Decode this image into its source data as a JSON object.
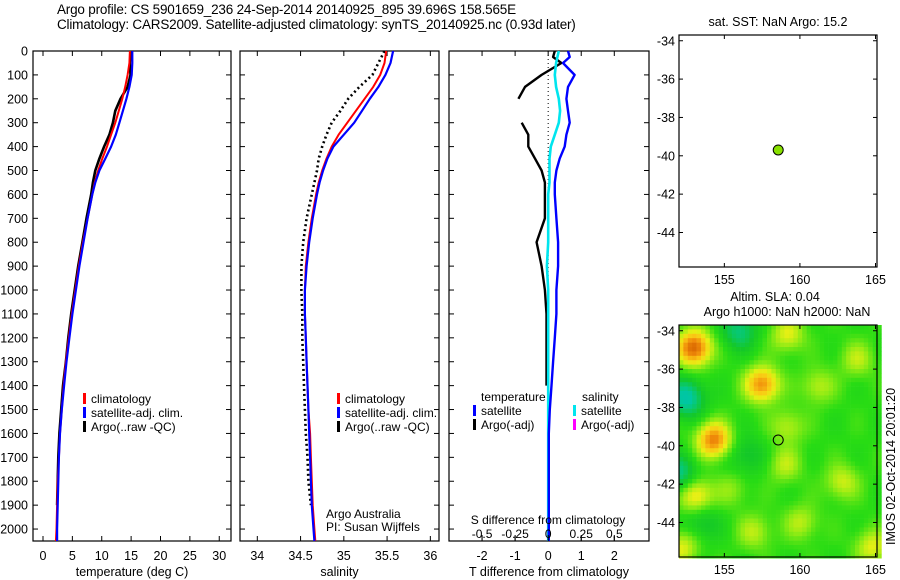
{
  "header": {
    "line1": "Argo profile: CS 5901659_236 24-Sep-2014 20140925_895 39.696S 158.565E",
    "line2": "Climatology: CARS2009. Satellite-adjusted climatology: synTS_20140925.nc (0.93d later)"
  },
  "colors": {
    "climatology": "#ff0000",
    "satellite": "#0000ff",
    "argo": "#000000",
    "salinity_satellite": "#00e5ee",
    "salinity_argo": "#ff00ff",
    "marker": "#88e000"
  },
  "chart_data": [
    {
      "id": "temperature",
      "type": "line",
      "xlabel": "temperature (deg C)",
      "ylabel": "",
      "xlim": [
        -1.7,
        32
      ],
      "ylim": [
        2050,
        0
      ],
      "xticks": [
        0,
        5,
        10,
        15,
        20,
        25,
        30
      ],
      "yticks": [
        0,
        100,
        200,
        300,
        400,
        500,
        600,
        700,
        800,
        900,
        1000,
        1100,
        1200,
        1300,
        1400,
        1500,
        1600,
        1700,
        1800,
        1900,
        2000
      ],
      "legend": [
        "climatology",
        "satellite-adj. clim.",
        "Argo(..raw -QC)"
      ],
      "legend_position": "lower-center",
      "depth": [
        0,
        50,
        100,
        150,
        200,
        250,
        300,
        350,
        400,
        450,
        500,
        550,
        600,
        700,
        800,
        900,
        1000,
        1100,
        1200,
        1300,
        1400,
        1500,
        1600,
        1700,
        1800,
        1900,
        2000,
        2050
      ],
      "series": [
        {
          "name": "climatology",
          "values": [
            14.8,
            14.7,
            14.4,
            14.0,
            13.5,
            12.9,
            12.3,
            11.6,
            10.9,
            10.1,
            9.4,
            8.8,
            8.4,
            7.6,
            6.8,
            6.1,
            5.5,
            4.9,
            4.4,
            3.9,
            3.5,
            3.2,
            2.9,
            2.7,
            2.5,
            2.4,
            2.3,
            2.2
          ]
        },
        {
          "name": "satellite-adj. clim.",
          "values": [
            15.2,
            15.2,
            15.1,
            14.7,
            14.2,
            13.6,
            13.0,
            12.4,
            11.6,
            10.6,
            9.6,
            8.9,
            8.4,
            7.6,
            6.9,
            6.2,
            5.6,
            5.0,
            4.5,
            4.0,
            3.6,
            3.2,
            2.9,
            2.7,
            2.6,
            2.5,
            2.4,
            2.4
          ]
        },
        {
          "name": "Argo(..raw -QC)",
          "values": [
            15.0,
            14.8,
            14.9,
            14.4,
            13.2,
            12.3,
            11.9,
            11.3,
            10.4,
            9.6,
            8.9,
            8.5,
            8.2,
            7.4,
            6.7,
            6.0,
            5.4,
            4.8,
            4.3,
            3.9,
            3.4,
            3.1,
            2.8,
            2.6,
            2.5,
            2.4,
            null,
            null
          ]
        }
      ]
    },
    {
      "id": "salinity",
      "type": "line",
      "xlabel": "salinity",
      "xlim": [
        33.8,
        36.1
      ],
      "ylim": [
        2050,
        0
      ],
      "xticks": [
        34,
        34.5,
        35,
        35.5,
        36
      ],
      "legend": [
        "climatology",
        "satellite-adj. clim.",
        "Argo(..raw -QC)"
      ],
      "legend_position": "lower-right",
      "annotation": [
        "Argo Australia",
        "PI: Susan Wijffels"
      ],
      "depth": [
        0,
        50,
        100,
        150,
        200,
        250,
        300,
        350,
        400,
        450,
        500,
        550,
        600,
        700,
        800,
        900,
        1000,
        1100,
        1200,
        1300,
        1400,
        1500,
        1600,
        1700,
        1800,
        1900,
        2000,
        2050
      ],
      "series": [
        {
          "name": "climatology",
          "values": [
            35.49,
            35.47,
            35.42,
            35.34,
            35.24,
            35.14,
            35.04,
            34.94,
            34.86,
            34.8,
            34.75,
            34.71,
            34.68,
            34.63,
            34.59,
            34.56,
            34.55,
            34.55,
            34.56,
            34.57,
            34.58,
            34.59,
            34.61,
            34.62,
            34.63,
            34.64,
            34.66,
            34.67
          ]
        },
        {
          "name": "satellite-adj. clim.",
          "values": [
            35.57,
            35.54,
            35.48,
            35.4,
            35.3,
            35.21,
            35.12,
            35.0,
            34.88,
            34.81,
            34.76,
            34.72,
            34.69,
            34.64,
            34.6,
            34.57,
            34.55,
            34.55,
            34.56,
            34.57,
            34.58,
            34.59,
            34.6,
            34.61,
            34.62,
            34.63,
            34.65,
            34.66
          ]
        },
        {
          "name": "Argo(..raw -QC)",
          "values": [
            35.47,
            35.4,
            35.33,
            35.18,
            35.05,
            34.96,
            34.86,
            34.8,
            34.75,
            34.71,
            34.69,
            34.66,
            34.63,
            34.57,
            34.53,
            34.51,
            34.51,
            34.52,
            34.52,
            34.53,
            34.54,
            34.55,
            34.56,
            34.58,
            34.59,
            34.62,
            null,
            null
          ]
        }
      ]
    },
    {
      "id": "difference",
      "type": "line",
      "xlabel": "T difference from climatology",
      "xlim": [
        -3.0,
        3.05
      ],
      "xticks": [
        -2,
        -1,
        0,
        1,
        2
      ],
      "top_axis_label": "S difference from climatology",
      "top_xticks": [
        -0.5,
        -0.25,
        0,
        0.25,
        0.5
      ],
      "ylim": [
        2050,
        0
      ],
      "legend": {
        "temperature": {
          "title": "temperature",
          "items": [
            "satellite",
            "Argo(-adj)"
          ]
        },
        "salinity": {
          "title": "salinity",
          "items": [
            "satellite",
            "Argo(-adj)"
          ]
        }
      },
      "legend_position": "lower",
      "depth": [
        0,
        25,
        50,
        100,
        150,
        200,
        250,
        300,
        350,
        400,
        450,
        500,
        550,
        600,
        700,
        800,
        900,
        1000,
        1100,
        1200,
        1300,
        1400,
        1500,
        1600,
        1700,
        1800,
        1900,
        2000,
        2050
      ],
      "series": [
        {
          "name": "T satellite",
          "values": [
            0.6,
            0.65,
            0.45,
            0.8,
            0.6,
            0.55,
            0.6,
            0.65,
            0.55,
            0.5,
            0.35,
            0.25,
            0.2,
            0.2,
            0.25,
            0.3,
            0.3,
            0.25,
            0.25,
            0.2,
            0.15,
            0.1,
            0.05,
            0.02,
            0.02,
            0.02,
            0.02,
            0.02,
            0.02
          ]
        },
        {
          "name": "T Argo(-adj)",
          "values": [
            0.2,
            0.15,
            0.4,
            -0.2,
            -0.7,
            -0.9,
            null,
            -0.8,
            -0.6,
            -0.6,
            -0.4,
            -0.2,
            -0.1,
            -0.1,
            -0.1,
            -0.35,
            -0.2,
            -0.1,
            -0.05,
            -0.05,
            -0.05,
            -0.05,
            null,
            null,
            null,
            null,
            null,
            null,
            null
          ]
        },
        {
          "name": "S satellite",
          "values": [
            0.08,
            0.07,
            0.06,
            0.05,
            0.06,
            0.08,
            0.09,
            0.08,
            0.05,
            0.02,
            0.01,
            0.01,
            0.01,
            0.0,
            0.0,
            0.0,
            -0.01,
            0.0,
            0.0,
            0.0,
            0.0,
            0.0,
            0.0,
            0.0,
            0.0,
            0.0,
            0.0,
            0.0,
            0.0
          ]
        }
      ]
    },
    {
      "id": "sst-map",
      "type": "scatter",
      "title": "sat. SST: NaN Argo: 15.2",
      "xlim": [
        152,
        165.1
      ],
      "ylim": [
        -45.8,
        -33.7
      ],
      "xticks": [
        155,
        160,
        165
      ],
      "yticks": [
        -34,
        -36,
        -38,
        -40,
        -42,
        -44
      ],
      "points": [
        {
          "lon": 158.565,
          "lat": -39.696,
          "color": "#88e000"
        }
      ]
    },
    {
      "id": "sla-map",
      "type": "heatmap",
      "title": [
        "Altim. SLA: 0.04",
        "Argo h1000: NaN h2000: NaN"
      ],
      "xlim": [
        152,
        165.1
      ],
      "ylim": [
        -45.8,
        -33.7
      ],
      "xticks": [
        155,
        160,
        165
      ],
      "yticks": [
        -34,
        -36,
        -38,
        -40,
        -42,
        -44
      ],
      "points": [
        {
          "lon": 158.565,
          "lat": -39.696
        }
      ],
      "highs": [
        {
          "lon": 153.0,
          "lat": -34.9,
          "amp": 1.0
        },
        {
          "lon": 157.5,
          "lat": -36.8,
          "amp": 0.8
        },
        {
          "lon": 154.3,
          "lat": -39.7,
          "amp": 0.85
        },
        {
          "lon": 153.1,
          "lat": -42.6,
          "amp": 0.55
        },
        {
          "lon": 159.2,
          "lat": -34.2,
          "amp": 0.4
        },
        {
          "lon": 161.2,
          "lat": -36.9,
          "amp": 0.3
        },
        {
          "lon": 163.8,
          "lat": -35.5,
          "amp": 0.3
        },
        {
          "lon": 159.2,
          "lat": -39.0,
          "amp": 0.3
        },
        {
          "lon": 162.8,
          "lat": -41.9,
          "amp": 0.35
        },
        {
          "lon": 160.1,
          "lat": -44.0,
          "amp": 0.3
        },
        {
          "lon": 157.0,
          "lat": -44.5,
          "amp": 0.3
        },
        {
          "lon": 164.8,
          "lat": -45.3,
          "amp": 0.4
        },
        {
          "lon": 152.2,
          "lat": -45.3,
          "amp": 0.4
        },
        {
          "lon": 159.0,
          "lat": -41.0,
          "amp": 0.3
        },
        {
          "lon": 155.5,
          "lat": -42.3,
          "amp": 0.2
        }
      ],
      "lows": [
        {
          "lon": 152.5,
          "lat": -37.5,
          "amp": 0.55
        },
        {
          "lon": 156.0,
          "lat": -34.0,
          "amp": 0.4
        },
        {
          "lon": 156.5,
          "lat": -40.5,
          "amp": 0.25
        },
        {
          "lon": 152.0,
          "lat": -41.5,
          "amp": 0.45
        },
        {
          "lon": 153.5,
          "lat": -44.0,
          "amp": 0.25
        }
      ]
    }
  ],
  "sidebar_stamp": "IMOS 02-Oct-2014 20:01:20"
}
